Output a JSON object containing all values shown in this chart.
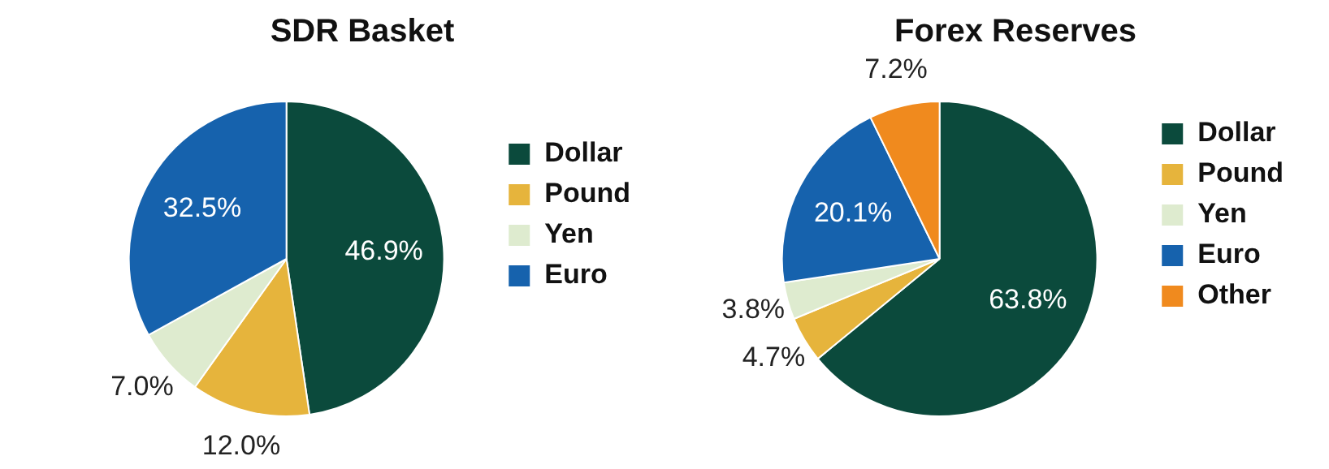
{
  "chart_data": [
    {
      "type": "pie",
      "title": "SDR Basket",
      "categories": [
        "Dollar",
        "Pound",
        "Yen",
        "Euro"
      ],
      "values": [
        46.9,
        12.0,
        7.0,
        32.5
      ],
      "colors": [
        "#0b4a3c",
        "#e6b43c",
        "#deebcf",
        "#1662ad"
      ],
      "value_labels": [
        "46.9%",
        "12.0%",
        "7.0%",
        "32.5%"
      ],
      "legend": "right"
    },
    {
      "type": "pie",
      "title": "Forex Reserves",
      "categories": [
        "Dollar",
        "Pound",
        "Yen",
        "Euro",
        "Other"
      ],
      "values": [
        63.8,
        4.7,
        3.8,
        20.1,
        7.2
      ],
      "colors": [
        "#0b4a3c",
        "#e6b43c",
        "#deebcf",
        "#1662ad",
        "#f08a1e"
      ],
      "value_labels": [
        "63.8%",
        "4.7%",
        "3.8%",
        "20.1%",
        "7.2%"
      ],
      "legend": "right"
    }
  ]
}
